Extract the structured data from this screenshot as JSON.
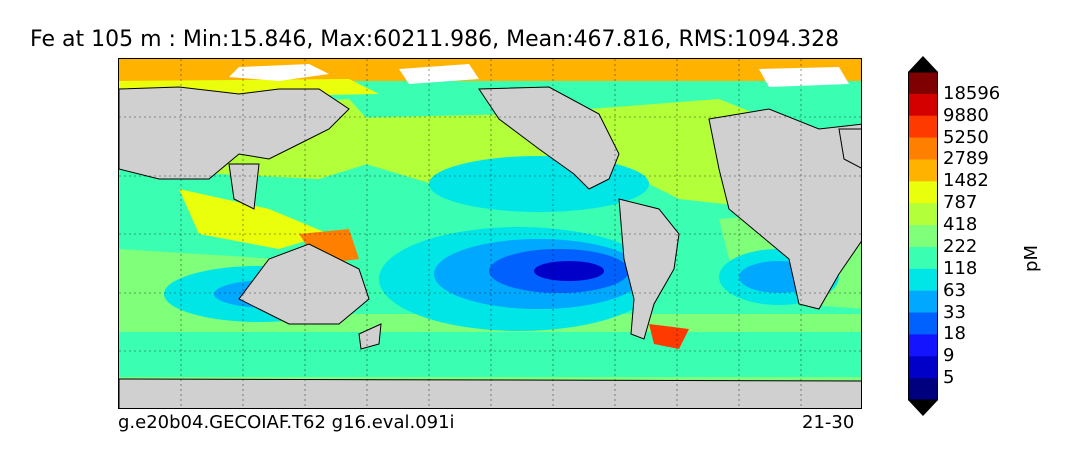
{
  "title": "Fe at 105 m : Min:15.846, Max:60211.986, Mean:467.816, RMS:1094.328",
  "footer": {
    "left": "g.e20b04.GECOIAF.T62 g16.eval.091i",
    "right": "21-30"
  },
  "colorbar": {
    "unit": "pM",
    "levels": [
      "18596",
      "9880",
      "5250",
      "2789",
      "1482",
      "787",
      "418",
      "222",
      "118",
      "63",
      "33",
      "18",
      "9",
      "5"
    ],
    "colors": [
      "#7f0000",
      "#d40000",
      "#ff3a00",
      "#ff7f00",
      "#ffb300",
      "#eaff0c",
      "#b3ff3a",
      "#7fff7a",
      "#3affb3",
      "#00e6e6",
      "#00a8ff",
      "#0061ff",
      "#1414ff",
      "#0000c8",
      "#00007f"
    ],
    "extend": "both"
  },
  "colors": {
    "land": "#d0d0d0",
    "ice": "#ffffff",
    "frame": "#000000"
  }
}
